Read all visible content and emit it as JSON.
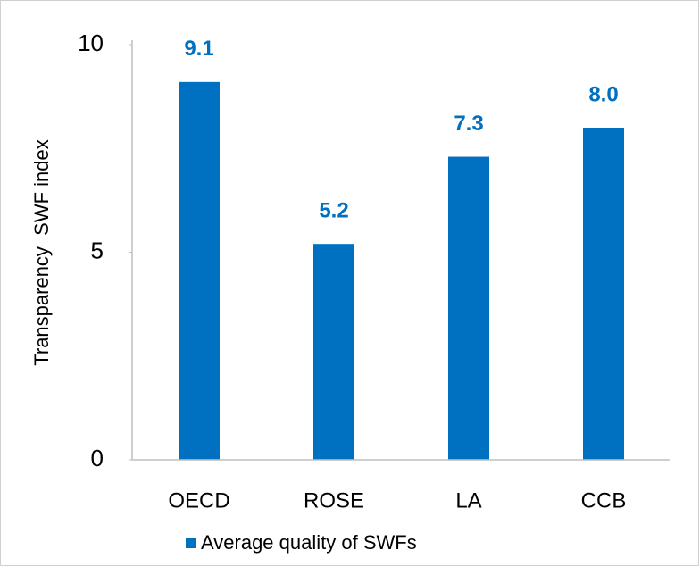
{
  "chart_data": {
    "type": "bar",
    "y_axis_label": "Transparency  SWF index",
    "categories": [
      "OECD",
      "ROSE",
      "LA",
      "CCB"
    ],
    "series": [
      {
        "name": "Average quality of SWFs",
        "color": "#0070c0",
        "values": [
          9.1,
          5.2,
          7.3,
          8.0
        ],
        "value_labels": [
          "9.1",
          "5.2",
          "7.3",
          "8.0"
        ]
      }
    ],
    "ylim": [
      0,
      10
    ],
    "yticks": [
      0,
      5,
      10
    ],
    "grid": false,
    "legend": "bottom"
  }
}
